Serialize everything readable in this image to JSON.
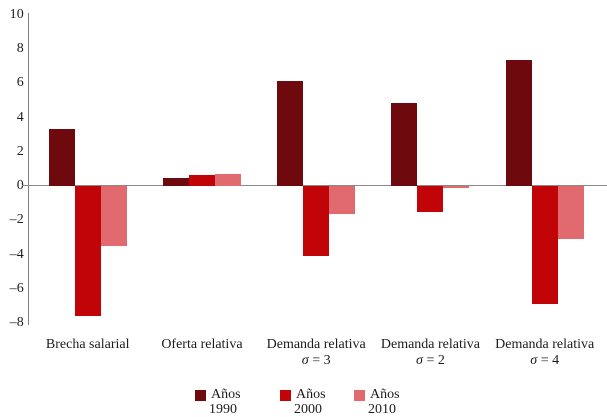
{
  "chart_data": {
    "type": "bar",
    "title": "",
    "xlabel": "",
    "ylabel": "",
    "ylim": [
      -8,
      10
    ],
    "grid": false,
    "legend_position": "bottom",
    "axis_color": "#7f7f7f",
    "zero_line_color": "#8a8a8a",
    "text_color": "#1c1c1c",
    "yticks": [
      {
        "value": 10,
        "label": "10"
      },
      {
        "value": 8,
        "label": "8"
      },
      {
        "value": 6,
        "label": "6"
      },
      {
        "value": 4,
        "label": "4"
      },
      {
        "value": 2,
        "label": "2"
      },
      {
        "value": 0,
        "label": "0"
      },
      {
        "value": -2,
        "label": "–2"
      },
      {
        "value": -4,
        "label": "–4"
      },
      {
        "value": -6,
        "label": "–6"
      },
      {
        "value": -8,
        "label": "–8"
      }
    ],
    "categories": [
      {
        "lines": [
          "Brecha salarial"
        ]
      },
      {
        "lines": [
          "Oferta relativa"
        ]
      },
      {
        "lines": [
          "Demanda relativa",
          "σ = 3"
        ]
      },
      {
        "lines": [
          "Demanda relativa",
          "σ = 2"
        ]
      },
      {
        "lines": [
          "Demanda relativa",
          "σ = 4"
        ]
      }
    ],
    "series": [
      {
        "name": "Años 1990",
        "name_lines": [
          "Años",
          "1990"
        ],
        "color": "#6e0a0e",
        "values": [
          3.3,
          0.45,
          6.1,
          4.8,
          7.3
        ]
      },
      {
        "name": "Años 2000",
        "name_lines": [
          "Años",
          "2000"
        ],
        "color": "#c00408",
        "values": [
          -7.6,
          0.6,
          -4.1,
          -1.5,
          -6.9
        ]
      },
      {
        "name": "Años 2010",
        "name_lines": [
          "Años",
          "2010"
        ],
        "color": "#e06a6d",
        "values": [
          -3.5,
          0.65,
          -1.6,
          -0.1,
          -3.1
        ]
      }
    ]
  }
}
